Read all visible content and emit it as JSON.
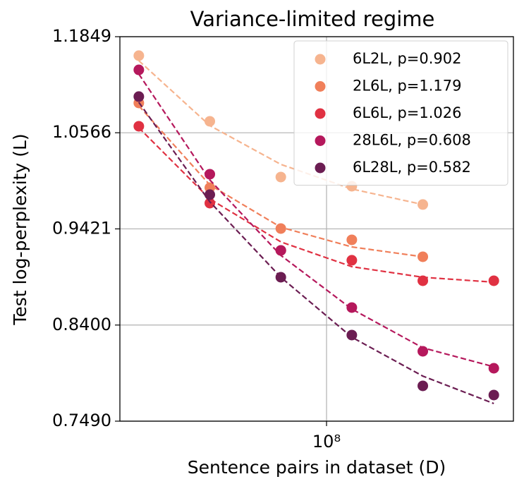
{
  "chart_data": {
    "type": "scatter",
    "title": "Variance-limited regime",
    "x_label": "Sentence pairs in dataset (D)",
    "y_label": "Test log-perplexity (L)",
    "x_scale": "log",
    "y_scale": "log",
    "xlim": [
      13300000,
      620000000
    ],
    "ylim": [
      0.749,
      1.1849
    ],
    "xticks": [
      {
        "value": 100000000,
        "label": "10⁸"
      }
    ],
    "yticks": [
      {
        "value": 0.749,
        "label": "0.7490"
      },
      {
        "value": 0.84,
        "label": "0.8400"
      },
      0.9421,
      1.0566,
      1.1849
    ],
    "grid": true,
    "legend": "upper right",
    "series": [
      {
        "name": "6L2L, p=0.902",
        "color": "#f6b48f",
        "x": [
          16000000,
          32000000,
          64000000,
          128000000,
          256000000
        ],
        "values": [
          1.1584,
          1.0711,
          1.0022,
          0.9913,
          0.9699
        ],
        "fit": [
          1.1515,
          1.0657,
          1.0175,
          0.988,
          0.9699
        ]
      },
      {
        "name": "2L6L, p=1.179",
        "color": "#f07f5a",
        "x": [
          16000000,
          32000000,
          64000000,
          128000000,
          256000000
        ],
        "values": [
          1.0948,
          0.9896,
          0.9425,
          0.9299,
          0.9113
        ],
        "fit": [
          1.0911,
          0.9929,
          0.944,
          0.9221,
          0.9113
        ]
      },
      {
        "name": "6L6L, p=1.026",
        "color": "#e03142",
        "x": [
          16000000,
          32000000,
          64000000,
          128000000,
          256000000,
          512000000
        ],
        "values": [
          1.0648,
          0.9715,
          0.9182,
          0.9075,
          0.8856,
          0.8856
        ],
        "fit": [
          1.063,
          0.9764,
          0.9276,
          0.9006,
          0.8893,
          0.8841
        ]
      },
      {
        "name": "28L6L, p=0.608",
        "color": "#b5185c",
        "x": [
          16000000,
          32000000,
          64000000,
          128000000,
          256000000,
          512000000
        ],
        "values": [
          1.1389,
          1.0056,
          0.9182,
          0.8577,
          0.8141,
          0.7978
        ],
        "fit": [
          1.1333,
          0.9988,
          0.9128,
          0.8562,
          0.8175,
          0.7992
        ]
      },
      {
        "name": "6L28L, p=0.582",
        "color": "#6b1d52",
        "x": [
          16000000,
          32000000,
          64000000,
          128000000,
          256000000,
          512000000
        ],
        "values": [
          1.1032,
          0.9814,
          0.8893,
          0.83,
          0.7812,
          0.7727
        ],
        "fit": [
          1.0957,
          0.9731,
          0.8893,
          0.8279,
          0.7904,
          0.7649
        ]
      }
    ]
  }
}
